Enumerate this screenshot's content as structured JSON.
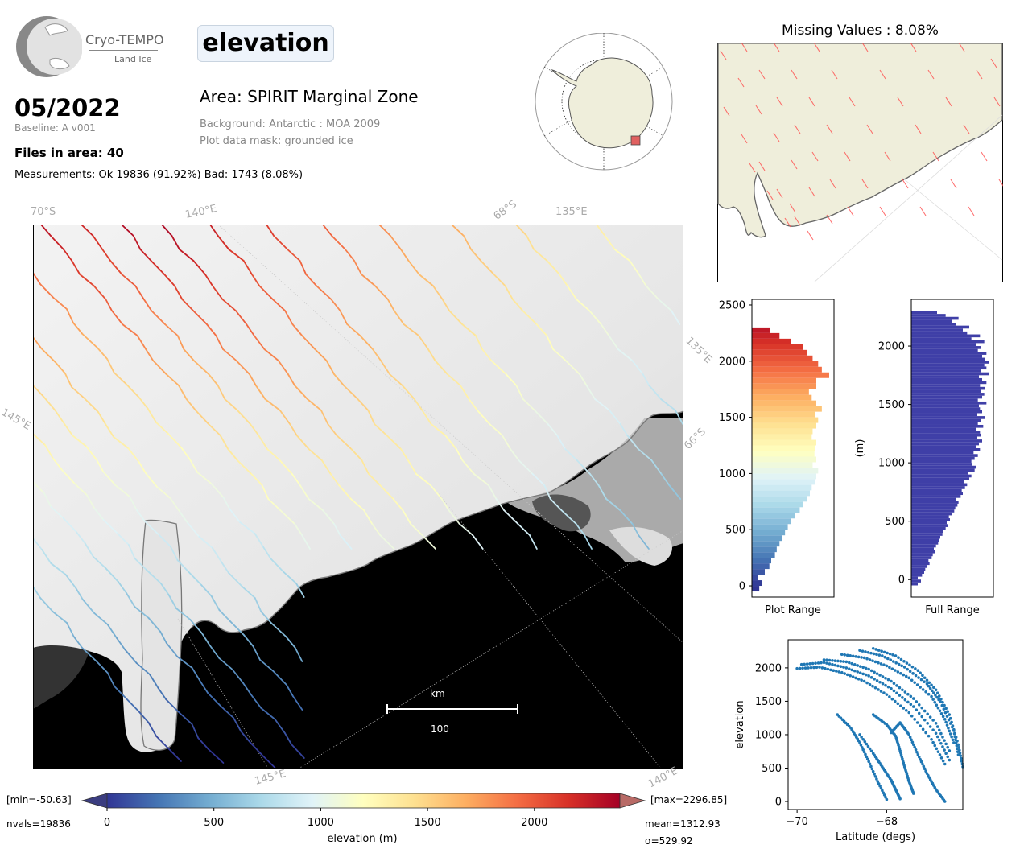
{
  "logo": {
    "title": "Cryo-TEMPO",
    "subtitle": "Land Ice"
  },
  "variable": "elevation",
  "date": "05/2022",
  "baseline": "Baseline: A v001",
  "files_in_area": "Files in area: 40",
  "measurements": "Measurements: Ok 19836 (91.92%) Bad: 1743 (8.08%)",
  "area": "Area: SPIRIT Marginal Zone",
  "background": "Background: Antarctic : MOA 2009",
  "mask": "Plot data mask: grounded ice",
  "missing_title": "Missing Values : 8.08%",
  "map_labels": {
    "lat70": "70°S",
    "lon140top": "140°E",
    "lat68": "68°S",
    "lon135top": "135°E",
    "lon135right": "135°E",
    "lon145left": "145°E",
    "lat66": "66°S",
    "lon145bottom": "145°E",
    "lon140bottom": "140°E"
  },
  "scalebar": {
    "unit": "km",
    "value": "100"
  },
  "colorbar": {
    "min_label": "[min=-50.63]",
    "max_label": "[max=2296.85]",
    "nvals": "nvals=19836",
    "mean": "mean=1312.93",
    "sigma": "σ=529.92",
    "label": "elevation (m)",
    "ticks": [
      "0",
      "500",
      "1000",
      "1500",
      "2000"
    ],
    "colormap": "RdYlBu_r"
  },
  "colors": {
    "land": "#efeedb",
    "coast": "#777777",
    "scatter": "#1f77b4",
    "hist_full": "#3f3fa7",
    "missing": "#ff4d4d"
  },
  "chart_data": [
    {
      "type": "bar",
      "title": "",
      "xlabel": "Plot Range",
      "ylabel": "",
      "yticks": [
        "0",
        "500",
        "1000",
        "1500",
        "2000",
        "2500"
      ],
      "ylim": [
        -100,
        2550
      ],
      "orientation": "horizontal",
      "bin_width": 50,
      "bin_starts": [
        -50,
        0,
        50,
        100,
        150,
        200,
        250,
        300,
        350,
        400,
        450,
        500,
        550,
        600,
        650,
        700,
        750,
        800,
        850,
        900,
        950,
        1000,
        1050,
        1100,
        1150,
        1200,
        1250,
        1300,
        1350,
        1400,
        1450,
        1500,
        1550,
        1600,
        1650,
        1700,
        1750,
        1800,
        1850,
        1900,
        1950,
        2000,
        2050,
        2100,
        2150,
        2200,
        2250
      ],
      "counts": [
        80,
        110,
        70,
        140,
        190,
        210,
        250,
        270,
        300,
        330,
        360,
        390,
        420,
        470,
        520,
        560,
        600,
        630,
        650,
        690,
        700,
        720,
        660,
        700,
        680,
        690,
        700,
        650,
        660,
        700,
        720,
        690,
        760,
        700,
        650,
        620,
        700,
        700,
        840,
        760,
        720,
        660,
        600,
        560,
        420,
        300,
        200
      ]
    },
    {
      "type": "bar",
      "title": "",
      "xlabel": "Full Range",
      "ylabel": "(m)",
      "yticks": [
        "0",
        "500",
        "1000",
        "1500",
        "2000"
      ],
      "ylim": [
        -150,
        2400
      ],
      "orientation": "horizontal",
      "bin_width": 25,
      "bin_starts": [
        -50,
        -25,
        0,
        25,
        50,
        75,
        100,
        125,
        150,
        175,
        200,
        225,
        250,
        275,
        300,
        325,
        350,
        375,
        400,
        425,
        450,
        475,
        500,
        525,
        550,
        575,
        600,
        625,
        650,
        675,
        700,
        725,
        750,
        775,
        800,
        825,
        850,
        875,
        900,
        925,
        950,
        975,
        1000,
        1025,
        1050,
        1075,
        1100,
        1125,
        1150,
        1175,
        1200,
        1225,
        1250,
        1275,
        1300,
        1325,
        1350,
        1375,
        1400,
        1425,
        1450,
        1475,
        1500,
        1525,
        1550,
        1575,
        1600,
        1625,
        1650,
        1675,
        1700,
        1725,
        1750,
        1775,
        1800,
        1825,
        1850,
        1875,
        1900,
        1925,
        1950,
        1975,
        2000,
        2025,
        2050,
        2075,
        2100,
        2125,
        2150,
        2175,
        2200,
        2225,
        2250,
        2275
      ],
      "counts": [
        60,
        90,
        60,
        100,
        120,
        130,
        150,
        170,
        160,
        190,
        200,
        220,
        210,
        230,
        250,
        260,
        270,
        290,
        300,
        320,
        340,
        330,
        360,
        350,
        380,
        400,
        410,
        430,
        440,
        420,
        460,
        480,
        470,
        500,
        520,
        490,
        540,
        560,
        530,
        590,
        600,
        570,
        560,
        590,
        620,
        580,
        640,
        600,
        630,
        660,
        610,
        650,
        640,
        600,
        670,
        620,
        650,
        690,
        610,
        660,
        640,
        630,
        700,
        620,
        660,
        680,
        650,
        690,
        640,
        700,
        660,
        630,
        720,
        650,
        700,
        680,
        720,
        690,
        660,
        700,
        620,
        650,
        600,
        680,
        560,
        640,
        520,
        480,
        540,
        420,
        380,
        440,
        320,
        240
      ]
    },
    {
      "type": "scatter",
      "title": "",
      "xlabel": "Latitude (degs)",
      "ylabel": "elevation",
      "xlim": [
        -70.2,
        -66.3
      ],
      "ylim": [
        -120,
        2420
      ],
      "xticks": [
        "−70",
        "−68"
      ],
      "yticks": [
        "0",
        "500",
        "1000",
        "1500",
        "2000"
      ],
      "tracks": [
        [
          [
            -70.0,
            1990
          ],
          [
            -69.5,
            2010
          ],
          [
            -69.0,
            1930
          ],
          [
            -68.5,
            1800
          ],
          [
            -68.0,
            1600
          ],
          [
            -67.5,
            1330
          ],
          [
            -67.0,
            930
          ],
          [
            -66.7,
            560
          ]
        ],
        [
          [
            -69.9,
            2050
          ],
          [
            -69.4,
            2080
          ],
          [
            -68.9,
            2000
          ],
          [
            -68.4,
            1880
          ],
          [
            -67.9,
            1690
          ],
          [
            -67.4,
            1420
          ],
          [
            -66.9,
            1020
          ],
          [
            -66.6,
            620
          ]
        ],
        [
          [
            -69.4,
            2120
          ],
          [
            -68.9,
            2090
          ],
          [
            -68.4,
            1980
          ],
          [
            -67.9,
            1800
          ],
          [
            -67.4,
            1540
          ],
          [
            -66.9,
            1170
          ],
          [
            -66.6,
            760
          ]
        ],
        [
          [
            -69.0,
            2200
          ],
          [
            -68.5,
            2150
          ],
          [
            -68.0,
            2030
          ],
          [
            -67.5,
            1850
          ],
          [
            -67.0,
            1570
          ],
          [
            -66.7,
            1230
          ],
          [
            -66.5,
            880
          ]
        ],
        [
          [
            -68.6,
            2260
          ],
          [
            -68.1,
            2180
          ],
          [
            -67.6,
            2010
          ],
          [
            -67.1,
            1760
          ],
          [
            -66.8,
            1490
          ],
          [
            -66.5,
            1060
          ],
          [
            -66.4,
            700
          ]
        ],
        [
          [
            -68.3,
            2290
          ],
          [
            -67.8,
            2180
          ],
          [
            -67.3,
            1960
          ],
          [
            -66.9,
            1670
          ],
          [
            -66.6,
            1300
          ],
          [
            -66.4,
            850
          ],
          [
            -66.3,
            520
          ]
        ],
        [
          [
            -68.3,
            1300
          ],
          [
            -68.0,
            1150
          ],
          [
            -67.8,
            980
          ],
          [
            -67.7,
            760
          ],
          [
            -67.6,
            520
          ],
          [
            -67.5,
            300
          ],
          [
            -67.4,
            120
          ]
        ],
        [
          [
            -68.6,
            1000
          ],
          [
            -68.3,
            720
          ],
          [
            -68.1,
            520
          ],
          [
            -67.9,
            320
          ],
          [
            -67.8,
            180
          ],
          [
            -67.7,
            40
          ]
        ],
        [
          [
            -67.9,
            1030
          ],
          [
            -67.7,
            1180
          ],
          [
            -67.5,
            1000
          ],
          [
            -67.3,
            700
          ],
          [
            -67.1,
            420
          ],
          [
            -66.9,
            180
          ],
          [
            -66.7,
            0
          ]
        ],
        [
          [
            -69.1,
            1300
          ],
          [
            -68.8,
            1100
          ],
          [
            -68.6,
            880
          ],
          [
            -68.4,
            600
          ],
          [
            -68.2,
            300
          ],
          [
            -68.0,
            30
          ]
        ]
      ]
    }
  ]
}
